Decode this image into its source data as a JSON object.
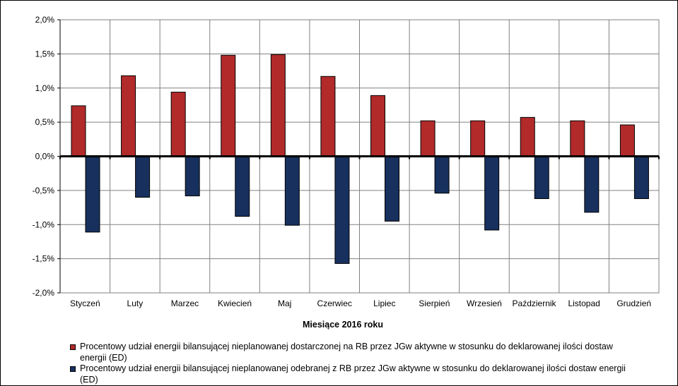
{
  "chart_data": {
    "type": "bar",
    "xlabel": "Miesiące 2016  roku",
    "ylabel": "",
    "ylim": [
      -2.0,
      2.0
    ],
    "yticks": [
      2.0,
      1.5,
      1.0,
      0.5,
      0.0,
      -0.5,
      -1.0,
      -1.5,
      -2.0
    ],
    "ytick_labels": [
      "2,0%",
      "1,5%",
      "1,0%",
      "0,5%",
      "0,0%",
      "-0,5%",
      "-1,0%",
      "-1,5%",
      "-2,0%"
    ],
    "grid": true,
    "legend_position": "bottom",
    "categories": [
      "Styczeń",
      "Luty",
      "Marzec",
      "Kwiecień",
      "Maj",
      "Czerwiec",
      "Lipiec",
      "Sierpień",
      "Wrzesień",
      "Październik",
      "Listopad",
      "Grudzień"
    ],
    "series": [
      {
        "name": "Procentowy udział energii bilansującej nieplanowanej dostarczonej na RB przez JGw aktywne w stosunku do deklarowanej ilości dostaw energii (ED)",
        "color": "#B22A2A",
        "values": [
          0.74,
          1.18,
          0.94,
          1.48,
          1.49,
          1.17,
          0.89,
          0.52,
          0.52,
          0.57,
          0.52,
          0.46
        ]
      },
      {
        "name": "Procentowy udział energii bilansującej nieplanowanej odebranej z RB przez JGw aktywne w stosunku do deklarowanej ilości dostaw energii (ED)",
        "color": "#17305E",
        "values": [
          -1.11,
          -0.6,
          -0.58,
          -0.88,
          -1.01,
          -1.57,
          -0.95,
          -0.54,
          -1.08,
          -0.62,
          -0.82,
          -0.62
        ]
      }
    ]
  }
}
